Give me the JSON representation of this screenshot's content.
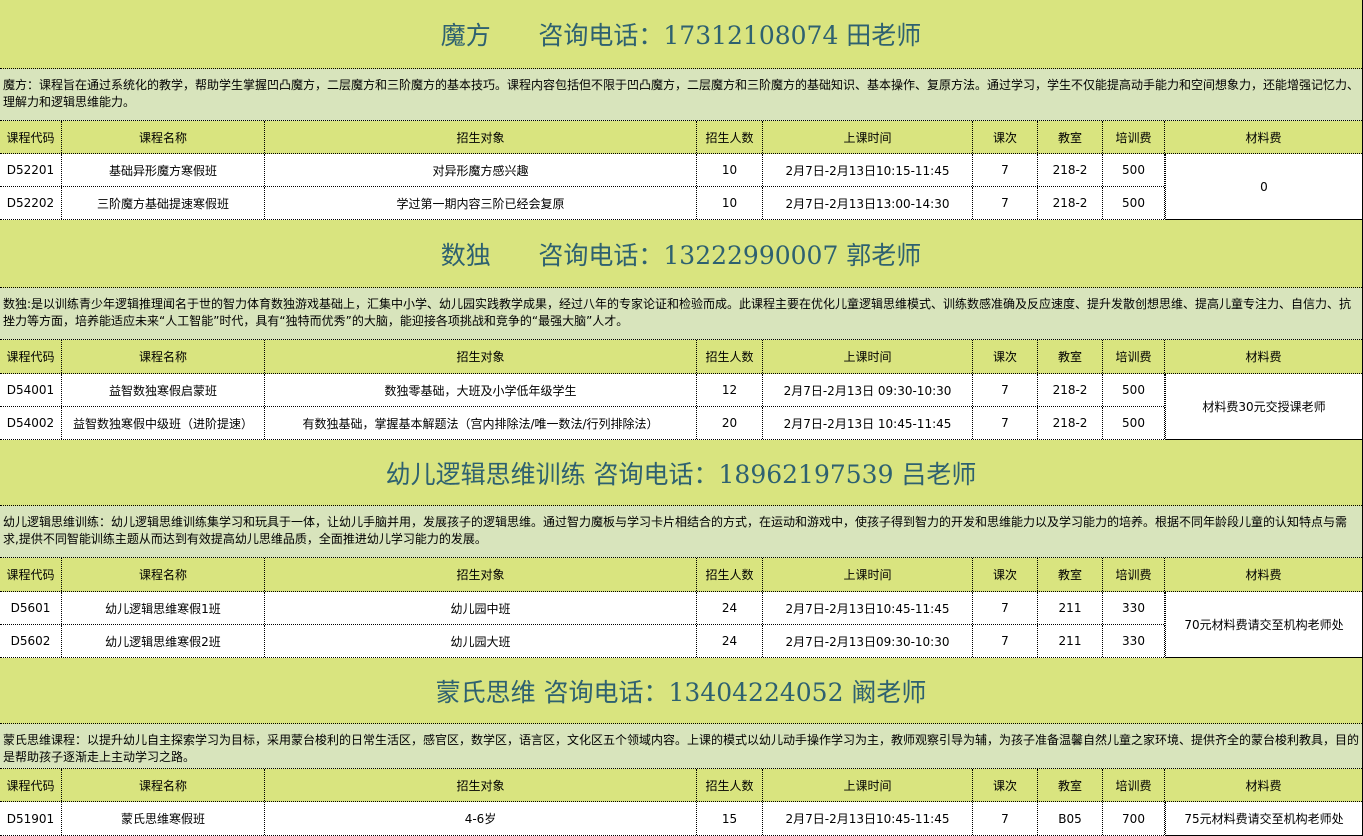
{
  "colors": {
    "title_bg": "#d9e47f",
    "desc_bg": "#d8e4bc",
    "header_bg": "#d9e47f",
    "title_text": "#2e6170"
  },
  "columns": [
    "课程代码",
    "课程名称",
    "招生对象",
    "招生人数",
    "上课时间",
    "课次",
    "教室",
    "培训费",
    "材料费"
  ],
  "sections": [
    {
      "title": "魔方      咨询电话：17312108074 田老师",
      "description": "魔方：课程旨在通过系统化的教学，帮助学生掌握凹凸魔方，二层魔方和三阶魔方的基本技巧。课程内容包括但不限于凹凸魔方，二层魔方和三阶魔方的基础知识、基本操作、复原方法。通过学习，学生不仅能提高动手能力和空间想象力，还能增强记忆力、理解力和逻辑思维能力。",
      "material_fee": "0",
      "rows": [
        [
          "D52201",
          "基础异形魔方寒假班",
          "对异形魔方感兴趣",
          "10",
          "2月7日-2月13日10:15-11:45",
          "7",
          "218-2",
          "500"
        ],
        [
          "D52202",
          "三阶魔方基础提速寒假班",
          "学过第一期内容三阶已经会复原",
          "10",
          "2月7日-2月13日13:00-14:30",
          "7",
          "218-2",
          "500"
        ]
      ]
    },
    {
      "title": "数独      咨询电话：13222990007 郭老师",
      "description": "数独:是以训练青少年逻辑推理闻名于世的智力体育数独游戏基础上，汇集中小学、幼儿园实践教学成果，经过八年的专家论证和检验而成。此课程主要在优化儿童逻辑思维模式、训练数感准确及反应速度、提升发散创想思维、提高儿童专注力、自信力、抗挫力等方面，培养能适应未来“人工智能”时代，具有“独特而优秀”的大脑，能迎接各项挑战和竞争的“最强大脑”人才。",
      "material_fee": "材料费30元交授课老师",
      "rows": [
        [
          "D54001",
          "益智数独寒假启蒙班",
          "数独零基础，大班及小学低年级学生",
          "12",
          "2月7日-2月13日 09:30-10:30",
          "7",
          "218-2",
          "500"
        ],
        [
          "D54002",
          "益智数独寒假中级班（进阶提速）",
          "有数独基础，掌握基本解题法（宫内排除法/唯一数法/行列排除法）",
          "20",
          "2月7日-2月13日 10:45-11:45",
          "7",
          "218-2",
          "500"
        ]
      ]
    },
    {
      "title": "幼儿逻辑思维训练 咨询电话：18962197539 吕老师",
      "description": "幼儿逻辑思维训练：幼儿逻辑思维训练集学习和玩具于一体，让幼儿手脑并用，发展孩子的逻辑思维。通过智力魔板与学习卡片相结合的方式，在运动和游戏中，使孩子得到智力的开发和思维能力以及学习能力的培养。根据不同年龄段儿童的认知特点与需求,提供不同智能训练主题从而达到有效提高幼儿思维品质，全面推进幼儿学习能力的发展。",
      "material_fee": "70元材料费请交至机构老师处",
      "rows": [
        [
          "D5601",
          "幼儿逻辑思维寒假1班",
          "幼儿园中班",
          "24",
          "2月7日-2月13日10:45-11:45",
          "7",
          "211",
          "330"
        ],
        [
          "D5602",
          "幼儿逻辑思维寒假2班",
          "幼儿园大班",
          "24",
          "2月7日-2月13日09:30-10:30",
          "7",
          "211",
          "330"
        ]
      ]
    },
    {
      "title": "蒙氏思维 咨询电话：13404224052 阚老师",
      "description": "蒙氏思维课程：以提升幼儿自主探索学习为目标，采用蒙台梭利的日常生活区，感官区，数学区，语言区，文化区五个领域内容。上课的模式以幼儿动手操作学习为主，教师观察引导为辅，为孩子准备温馨自然儿童之家环境、提供齐全的蒙台梭利教具，目的是帮助孩子逐渐走上主动学习之路。",
      "material_fee": "75元材料费请交至机构老师处",
      "rows": [
        [
          "D51901",
          "蒙氏思维寒假班",
          "4-6岁",
          "15",
          "2月7日-2月13日10:45-11:45",
          "7",
          "B05",
          "700"
        ]
      ]
    }
  ]
}
